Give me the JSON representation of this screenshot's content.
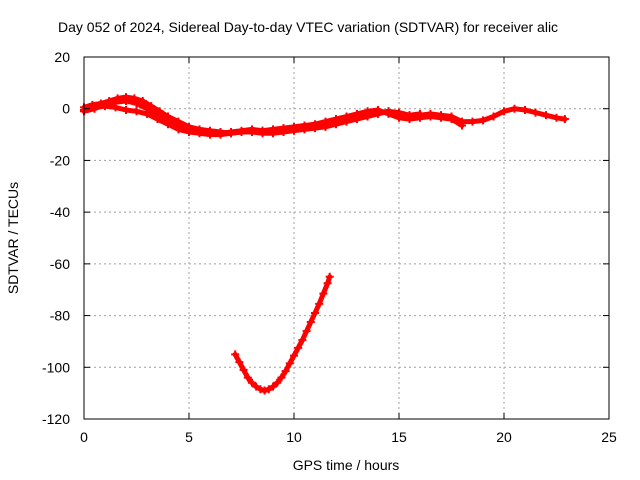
{
  "chart_data": {
    "type": "scatter",
    "title": "Day 052 of 2024, Sidereal Day-to-day VTEC variation (SDTVAR) for receiver alic",
    "xlabel": "GPS time / hours",
    "ylabel": "SDTVAR / TECUs",
    "xlim": [
      0,
      25
    ],
    "ylim": [
      -120,
      20
    ],
    "xticks": [
      0,
      5,
      10,
      15,
      20,
      25
    ],
    "yticks": [
      20,
      0,
      -20,
      -40,
      -60,
      -80,
      -100,
      -120
    ],
    "grid": true,
    "marker": "+",
    "color": "#ff0000",
    "series": [
      {
        "name": "track-1",
        "points": [
          [
            0.0,
            0.5
          ],
          [
            0.4,
            1.5
          ],
          [
            0.8,
            2.0
          ],
          [
            1.2,
            3.0
          ],
          [
            1.6,
            4.0
          ],
          [
            2.0,
            4.5
          ],
          [
            2.4,
            4.0
          ],
          [
            2.8,
            3.0
          ],
          [
            3.2,
            1.0
          ],
          [
            3.6,
            -1.0
          ],
          [
            4.0,
            -3.0
          ],
          [
            4.5,
            -5.0
          ],
          [
            5.0,
            -7.0
          ],
          [
            5.5,
            -8.0
          ],
          [
            6.0,
            -8.5
          ],
          [
            6.5,
            -9.0
          ],
          [
            7.0,
            -9.5
          ],
          [
            7.5,
            -9.0
          ],
          [
            8.0,
            -8.5
          ],
          [
            8.5,
            -8.5
          ],
          [
            9.0,
            -9.0
          ],
          [
            9.5,
            -8.5
          ],
          [
            10.0,
            -8.0
          ],
          [
            10.5,
            -7.5
          ],
          [
            11.0,
            -7.0
          ],
          [
            11.5,
            -6.0
          ],
          [
            12.0,
            -5.0
          ],
          [
            12.5,
            -4.0
          ],
          [
            13.0,
            -3.0
          ],
          [
            13.5,
            -2.0
          ],
          [
            14.0,
            -1.5
          ],
          [
            14.5,
            -1.0
          ],
          [
            15.0,
            -2.0
          ],
          [
            15.5,
            -3.0
          ],
          [
            16.0,
            -2.5
          ],
          [
            16.5,
            -2.0
          ],
          [
            17.0,
            -2.5
          ],
          [
            17.5,
            -3.0
          ],
          [
            18.0,
            -5.0
          ],
          [
            18.5,
            -5.0
          ],
          [
            19.0,
            -4.5
          ],
          [
            19.5,
            -3.0
          ],
          [
            20.0,
            -1.0
          ],
          [
            20.5,
            0.0
          ],
          [
            21.0,
            -0.5
          ],
          [
            21.5,
            -1.5
          ],
          [
            22.0,
            -2.5
          ],
          [
            22.5,
            -3.5
          ],
          [
            22.9,
            -4.0
          ]
        ]
      },
      {
        "name": "track-2",
        "points": [
          [
            0.0,
            -1.0
          ],
          [
            0.5,
            0.0
          ],
          [
            1.0,
            1.5
          ],
          [
            1.5,
            2.5
          ],
          [
            2.0,
            3.0
          ],
          [
            2.5,
            2.0
          ],
          [
            3.0,
            0.0
          ],
          [
            3.5,
            -2.0
          ],
          [
            4.0,
            -4.5
          ],
          [
            4.5,
            -7.0
          ],
          [
            5.0,
            -8.5
          ],
          [
            5.5,
            -9.0
          ],
          [
            6.0,
            -9.5
          ],
          [
            6.5,
            -9.5
          ],
          [
            7.0,
            -9.0
          ],
          [
            7.5,
            -8.5
          ],
          [
            8.0,
            -8.0
          ],
          [
            8.5,
            -8.5
          ],
          [
            9.0,
            -8.0
          ],
          [
            9.5,
            -7.5
          ],
          [
            10.0,
            -7.0
          ],
          [
            10.5,
            -6.5
          ],
          [
            11.0,
            -6.0
          ],
          [
            11.5,
            -5.0
          ],
          [
            12.0,
            -4.0
          ],
          [
            12.5,
            -3.0
          ],
          [
            13.0,
            -2.0
          ],
          [
            13.5,
            -1.0
          ],
          [
            14.0,
            -0.5
          ],
          [
            14.5,
            -2.0
          ],
          [
            15.0,
            -3.5
          ],
          [
            15.5,
            -4.0
          ],
          [
            16.0,
            -3.5
          ],
          [
            16.5,
            -3.0
          ],
          [
            17.0,
            -3.5
          ],
          [
            17.5,
            -4.0
          ],
          [
            18.0,
            -6.5
          ]
        ]
      },
      {
        "name": "track-3",
        "points": [
          [
            0.0,
            -0.5
          ],
          [
            0.5,
            0.5
          ],
          [
            1.0,
            1.0
          ],
          [
            1.5,
            0.5
          ],
          [
            2.0,
            -0.5
          ],
          [
            2.5,
            -1.0
          ],
          [
            3.0,
            -2.0
          ],
          [
            3.5,
            -4.0
          ],
          [
            4.0,
            -6.0
          ],
          [
            4.5,
            -8.0
          ],
          [
            5.0,
            -9.0
          ],
          [
            5.5,
            -9.5
          ],
          [
            6.0,
            -10.0
          ],
          [
            6.5,
            -10.0
          ],
          [
            7.0,
            -9.5
          ],
          [
            7.5,
            -9.0
          ],
          [
            8.0,
            -9.0
          ],
          [
            8.5,
            -9.5
          ],
          [
            9.0,
            -9.5
          ],
          [
            9.5,
            -9.0
          ],
          [
            10.0,
            -8.5
          ],
          [
            10.5,
            -8.0
          ],
          [
            11.0,
            -7.5
          ],
          [
            11.5,
            -7.0
          ],
          [
            12.0,
            -6.0
          ],
          [
            12.5,
            -5.0
          ],
          [
            13.0,
            -4.0
          ],
          [
            13.5,
            -3.0
          ],
          [
            14.0,
            -2.0
          ],
          [
            14.5,
            -1.0
          ],
          [
            15.0,
            -1.5
          ],
          [
            15.5,
            -2.5
          ],
          [
            16.0,
            -2.0
          ]
        ]
      },
      {
        "name": "track-4",
        "points": [
          [
            7.2,
            -95.0
          ],
          [
            7.4,
            -98.0
          ],
          [
            7.6,
            -101.0
          ],
          [
            7.8,
            -104.0
          ],
          [
            8.0,
            -106.0
          ],
          [
            8.2,
            -107.5
          ],
          [
            8.4,
            -108.5
          ],
          [
            8.6,
            -109.0
          ],
          [
            8.8,
            -108.5
          ],
          [
            9.0,
            -107.5
          ],
          [
            9.2,
            -106.0
          ],
          [
            9.4,
            -104.0
          ],
          [
            9.6,
            -101.5
          ],
          [
            9.8,
            -98.5
          ],
          [
            10.0,
            -95.5
          ],
          [
            10.2,
            -92.5
          ],
          [
            10.4,
            -89.5
          ],
          [
            10.6,
            -86.0
          ],
          [
            10.8,
            -82.5
          ],
          [
            11.0,
            -79.0
          ],
          [
            11.2,
            -75.5
          ],
          [
            11.4,
            -71.5
          ],
          [
            11.6,
            -67.5
          ],
          [
            11.7,
            -65.0
          ]
        ]
      }
    ]
  }
}
